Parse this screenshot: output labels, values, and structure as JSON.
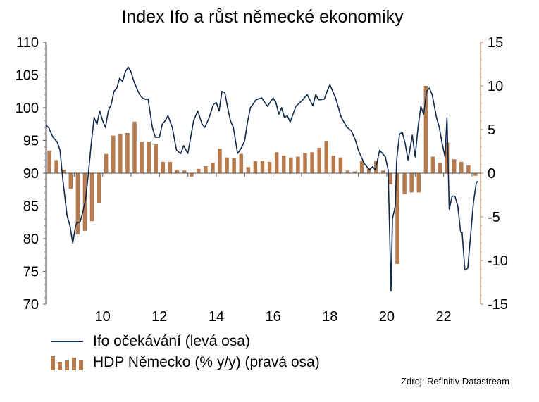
{
  "chart_data": {
    "type": "bar+line",
    "title": "Index Ifo a růst německé ekonomiky",
    "source": "Zdroj: Refinitiv Datastream",
    "left_axis": {
      "ylim": [
        70,
        110
      ],
      "ticks": [
        "110",
        "105",
        "100",
        "95",
        "90",
        "85",
        "80",
        "75",
        "70"
      ]
    },
    "right_axis": {
      "ylim": [
        -15,
        15
      ],
      "ticks": [
        "15",
        "10",
        "5",
        "0",
        "-5",
        "-10",
        "-15"
      ]
    },
    "x_axis": {
      "xlim": [
        2008.0,
        2023.3
      ],
      "tick_labels": [
        "10",
        "12",
        "14",
        "16",
        "18",
        "20",
        "22"
      ],
      "tick_values": [
        2010,
        2012,
        2014,
        2016,
        2018,
        2020,
        2022
      ]
    },
    "series": [
      {
        "name": "Ifo očekávání (levá osa)",
        "kind": "line",
        "axis": "left",
        "color": "#0f2a4d",
        "x": [
          2008.0,
          2008.1,
          2008.25,
          2008.4,
          2008.5,
          2008.6,
          2008.75,
          2008.85,
          2008.95,
          2009.05,
          2009.1,
          2009.2,
          2009.3,
          2009.4,
          2009.5,
          2009.6,
          2009.7,
          2009.8,
          2009.9,
          2010.0,
          2010.1,
          2010.2,
          2010.3,
          2010.4,
          2010.5,
          2010.6,
          2010.7,
          2010.8,
          2010.9,
          2011.0,
          2011.1,
          2011.2,
          2011.3,
          2011.4,
          2011.5,
          2011.6,
          2011.75,
          2011.85,
          2012.0,
          2012.1,
          2012.2,
          2012.3,
          2012.45,
          2012.6,
          2012.75,
          2012.85,
          2013.0,
          2013.1,
          2013.2,
          2013.35,
          2013.5,
          2013.6,
          2013.75,
          2013.9,
          2014.0,
          2014.1,
          2014.2,
          2014.3,
          2014.4,
          2014.5,
          2014.6,
          2014.75,
          2014.9,
          2015.0,
          2015.1,
          2015.2,
          2015.4,
          2015.6,
          2015.8,
          2016.0,
          2016.1,
          2016.2,
          2016.3,
          2016.4,
          2016.5,
          2016.6,
          2016.8,
          2017.0,
          2017.2,
          2017.4,
          2017.5,
          2017.6,
          2017.8,
          2017.9,
          2018.0,
          2018.2,
          2018.4,
          2018.6,
          2018.75,
          2018.9,
          2019.0,
          2019.2,
          2019.3,
          2019.4,
          2019.5,
          2019.6,
          2019.75,
          2019.85,
          2019.95,
          2020.05,
          2020.15,
          2020.2,
          2020.3,
          2020.35,
          2020.45,
          2020.55,
          2020.65,
          2020.75,
          2020.9,
          2021.0,
          2021.1,
          2021.2,
          2021.3,
          2021.4,
          2021.5,
          2021.6,
          2021.75,
          2021.85,
          2021.95,
          2022.05,
          2022.12,
          2022.2,
          2022.3,
          2022.4,
          2022.5,
          2022.6,
          2022.65,
          2022.75,
          2022.85,
          2022.95,
          2023.05,
          2023.15,
          2023.2
        ],
        "values": [
          97.3,
          97.0,
          95.5,
          94.8,
          93.5,
          89.0,
          83.5,
          82.0,
          79.3,
          82.0,
          82.5,
          82.5,
          84.0,
          86.0,
          90.0,
          94.5,
          98.5,
          97.5,
          99.5,
          98.0,
          97.0,
          99.5,
          100.5,
          102.5,
          103.0,
          104.5,
          104.0,
          105.5,
          106.2,
          105.5,
          104.0,
          103.0,
          102.0,
          101.5,
          101.3,
          101.3,
          97.0,
          95.5,
          95.5,
          97.5,
          98.0,
          98.8,
          97.0,
          93.5,
          93.0,
          94.2,
          93.0,
          95.5,
          98.0,
          99.5,
          97.5,
          97.0,
          98.5,
          100.5,
          100.8,
          99.5,
          102.5,
          102.3,
          100.0,
          98.0,
          97.0,
          93.0,
          94.0,
          95.0,
          97.8,
          100.0,
          101.2,
          101.5,
          100.2,
          101.5,
          100.8,
          99.0,
          100.0,
          98.5,
          98.8,
          97.8,
          100.2,
          101.0,
          102.0,
          100.3,
          102.0,
          101.2,
          101.3,
          102.5,
          103.5,
          101.5,
          98.5,
          97.0,
          96.5,
          95.0,
          93.5,
          91.5,
          91.0,
          90.5,
          91.0,
          90.5,
          93.5,
          93.0,
          92.5,
          90.5,
          72.0,
          83.0,
          85.0,
          92.0,
          96.0,
          96.2,
          94.5,
          92.0,
          95.8,
          92.5,
          97.0,
          100.2,
          99.0,
          102.5,
          103.0,
          102.0,
          98.5,
          97.0,
          94.5,
          92.5,
          98.5,
          84.5,
          86.5,
          86.5,
          85.0,
          81.0,
          81.0,
          75.2,
          75.5,
          80.5,
          85.5,
          88.5,
          88.8
        ],
        "legend_label": "Ifo očekávání (levá osa)"
      },
      {
        "name": "HDP Německo (% y/y) (pravá osa)",
        "kind": "bar",
        "axis": "right",
        "color": "#b77a4c",
        "x": [
          2008.0,
          2008.25,
          2008.5,
          2008.75,
          2009.0,
          2009.25,
          2009.5,
          2009.75,
          2010.0,
          2010.25,
          2010.5,
          2010.75,
          2011.0,
          2011.25,
          2011.5,
          2011.75,
          2012.0,
          2012.25,
          2012.5,
          2012.75,
          2013.0,
          2013.25,
          2013.5,
          2013.75,
          2014.0,
          2014.25,
          2014.5,
          2014.75,
          2015.0,
          2015.25,
          2015.5,
          2015.75,
          2016.0,
          2016.25,
          2016.5,
          2016.75,
          2017.0,
          2017.25,
          2017.5,
          2017.75,
          2018.0,
          2018.25,
          2018.5,
          2018.75,
          2019.0,
          2019.25,
          2019.5,
          2019.75,
          2020.0,
          2020.25,
          2020.5,
          2020.75,
          2021.0,
          2021.25,
          2021.5,
          2021.75,
          2022.0,
          2022.25,
          2022.5,
          2022.75,
          2023.0
        ],
        "values": [
          2.6,
          1.5,
          0.4,
          -1.8,
          -7.0,
          -6.6,
          -5.5,
          -3.4,
          2.2,
          4.3,
          4.5,
          4.6,
          5.9,
          3.6,
          3.6,
          3.3,
          1.3,
          1.3,
          0.4,
          0.3,
          -0.4,
          0.5,
          0.8,
          1.2,
          2.8,
          1.8,
          1.7,
          2.2,
          0.7,
          1.4,
          1.4,
          1.3,
          2.4,
          2.0,
          1.8,
          1.9,
          2.3,
          2.4,
          2.9,
          3.7,
          2.0,
          1.8,
          0.3,
          0.2,
          1.4,
          0.6,
          1.4,
          0.3,
          -1.3,
          -10.4,
          -2.4,
          -2.2,
          -2.2,
          10.0,
          1.9,
          1.2,
          3.5,
          1.6,
          1.3,
          0.9,
          -0.3
        ],
        "legend_label": "HDP Německo (% y/y) (pravá osa)"
      }
    ]
  }
}
